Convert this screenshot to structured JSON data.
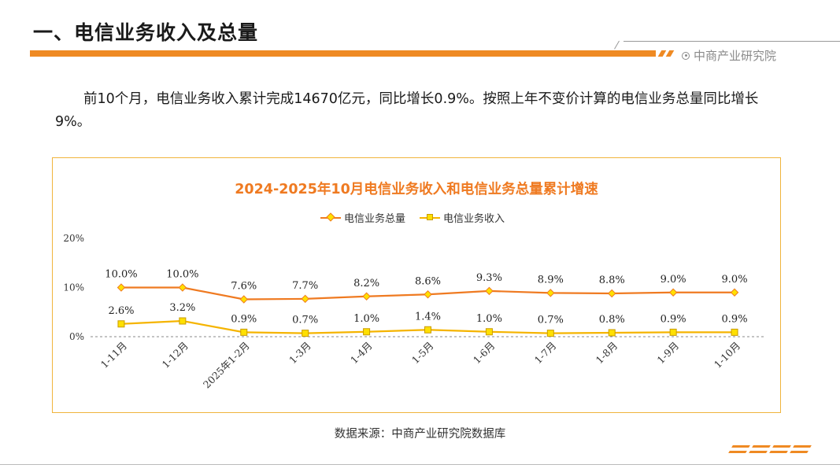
{
  "header": {
    "title": "一、电信业务收入及总量",
    "brand": "中商产业研究院"
  },
  "paragraph": "前10个月，电信业务收入累计完成14670亿元，同比增长0.9%。按照上年不变价计算的电信业务总量同比增长9%。",
  "source": "数据来源：中商产业研究院数据库",
  "colors": {
    "accent": "#ef8a23",
    "series_total": "#ef7a21",
    "series_income": "#f5b400",
    "marker_fill": "#ffe000"
  },
  "chart_data": {
    "type": "line",
    "title": "2024-2025年10月电信业务收入和电信业务总量累计增速",
    "categories": [
      "1-11月",
      "1-12月",
      "2025年1-2月",
      "1-3月",
      "1-4月",
      "1-5月",
      "1-6月",
      "1-7月",
      "1-8月",
      "1-9月",
      "1-10月"
    ],
    "series": [
      {
        "name": "电信业务总量",
        "values": [
          10.0,
          10.0,
          7.6,
          7.7,
          8.2,
          8.6,
          9.3,
          8.9,
          8.8,
          9.0,
          9.0
        ],
        "labels": [
          "10.0%",
          "10.0%",
          "7.6%",
          "7.7%",
          "8.2%",
          "8.6%",
          "9.3%",
          "8.9%",
          "8.8%",
          "9.0%",
          "9.0%"
        ]
      },
      {
        "name": "电信业务收入",
        "values": [
          2.6,
          3.2,
          0.9,
          0.7,
          1.0,
          1.4,
          1.0,
          0.7,
          0.8,
          0.9,
          0.9
        ],
        "labels": [
          "2.6%",
          "3.2%",
          "0.9%",
          "0.7%",
          "1.0%",
          "1.4%",
          "1.0%",
          "0.7%",
          "0.8%",
          "0.9%",
          "0.9%"
        ]
      }
    ],
    "yticks": [
      0,
      10,
      20
    ],
    "ytick_labels": [
      "0%",
      "10%",
      "20%"
    ],
    "ylim": [
      0,
      20
    ],
    "legend_position": "top-center",
    "grid": false
  }
}
